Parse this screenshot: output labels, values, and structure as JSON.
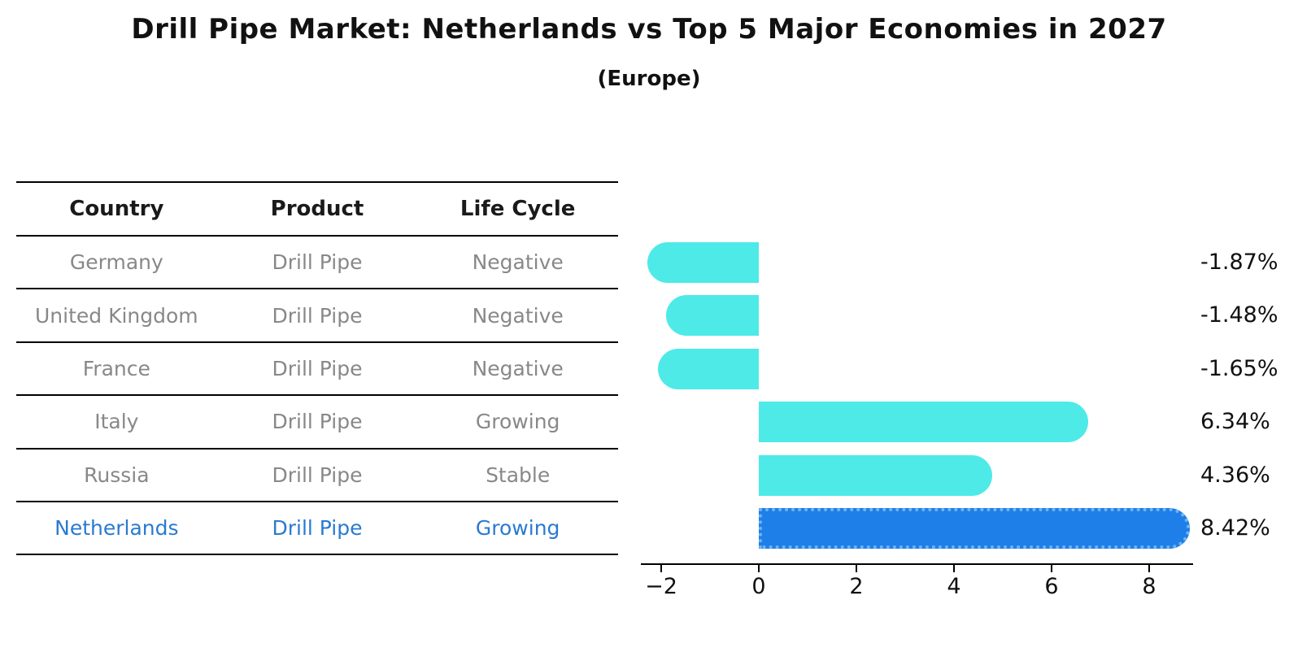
{
  "title": "Drill Pipe Market: Netherlands vs Top 5 Major Economies in 2027",
  "subtitle": "(Europe)",
  "table": {
    "headers": [
      "Country",
      "Product",
      "Life Cycle"
    ],
    "rows": [
      {
        "country": "Germany",
        "product": "Drill Pipe",
        "life_cycle": "Negative",
        "highlight": false
      },
      {
        "country": "United Kingdom",
        "product": "Drill Pipe",
        "life_cycle": "Negative",
        "highlight": false
      },
      {
        "country": "France",
        "product": "Drill Pipe",
        "life_cycle": "Negative",
        "highlight": false
      },
      {
        "country": "Italy",
        "product": "Drill Pipe",
        "life_cycle": "Growing",
        "highlight": false
      },
      {
        "country": "Russia",
        "product": "Drill Pipe",
        "life_cycle": "Stable",
        "highlight": false
      },
      {
        "country": "Netherlands",
        "product": "Drill Pipe",
        "life_cycle": "Growing",
        "highlight": true
      }
    ]
  },
  "chart_data": {
    "type": "bar",
    "orientation": "horizontal",
    "title": "Drill Pipe Market: Netherlands vs Top 5 Major Economies in 2027",
    "subtitle": "(Europe)",
    "categories": [
      "Germany",
      "United Kingdom",
      "France",
      "Italy",
      "Russia",
      "Netherlands"
    ],
    "values": [
      -1.87,
      -1.48,
      -1.65,
      6.34,
      4.36,
      8.42
    ],
    "value_labels": [
      "-1.87%",
      "-1.48%",
      "-1.65%",
      "6.34%",
      "4.36%",
      "8.42%"
    ],
    "unit": "percent",
    "xticks": [
      "−2",
      "0",
      "2",
      "4",
      "6",
      "8"
    ],
    "xtick_values": [
      -2,
      0,
      2,
      4,
      6,
      8
    ],
    "xlim": [
      -2.45,
      8.9
    ],
    "grid": false,
    "legend": false,
    "bar_color": "#4deae8",
    "highlight_index": 5,
    "highlight_color": "#1f7fe8",
    "highlight_edge_color": "#6fb4f2",
    "highlight_edge_style": "dotted",
    "highlight_text_color": "#2a7ad0",
    "axis_color": "#000000",
    "table_text_color": "#888888"
  }
}
